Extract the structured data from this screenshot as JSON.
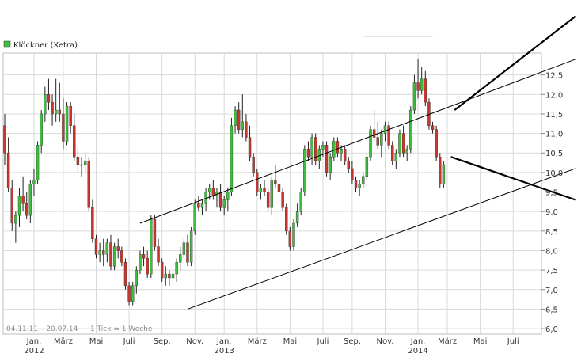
{
  "legend": {
    "label": "Klöckner (Xetra)",
    "color": "#3cbf3c"
  },
  "footer": {
    "range": "04.11.11 – 20.07.14",
    "tick": "1 Tick = 1 Woche"
  },
  "colors": {
    "up": "#3cbf3c",
    "down": "#c8372f",
    "wick": "#222222",
    "grid": "#d9d9d9",
    "trend": "#000000"
  },
  "chart_data": {
    "type": "candlestick",
    "title": "Klöckner (Xetra)",
    "xlabel": "",
    "ylabel": "",
    "ylim": [
      5.9,
      13.0
    ],
    "grid": true,
    "legend_position": "top-left",
    "y_ticks": [
      "6,0",
      "6,5",
      "7,0",
      "7,5",
      "8,0",
      "8,5",
      "9,0",
      "9,5",
      "10,0",
      "10,5",
      "11,0",
      "11,5",
      "12,0",
      "12,5"
    ],
    "y_tick_values": [
      6.0,
      6.5,
      7.0,
      7.5,
      8.0,
      8.5,
      9.0,
      9.5,
      10.0,
      10.5,
      11.0,
      11.5,
      12.0,
      12.5
    ],
    "x_ticks": [
      {
        "label": "Jan.",
        "week": 8,
        "year": "2012"
      },
      {
        "label": "März",
        "week": 16
      },
      {
        "label": "Mai",
        "week": 25
      },
      {
        "label": "Juli",
        "week": 34
      },
      {
        "label": "Sep.",
        "week": 43
      },
      {
        "label": "Nov.",
        "week": 52
      },
      {
        "label": "Jan.",
        "week": 60,
        "year": "2013"
      },
      {
        "label": "März",
        "week": 69
      },
      {
        "label": "Mai",
        "week": 78
      },
      {
        "label": "Juli",
        "week": 87
      },
      {
        "label": "Sep.",
        "week": 95
      },
      {
        "label": "Nov.",
        "week": 104
      },
      {
        "label": "Jan.",
        "week": 113,
        "year": "2014"
      },
      {
        "label": "März",
        "week": 121
      },
      {
        "label": "Mai",
        "week": 130
      },
      {
        "label": "Juli",
        "week": 139
      }
    ],
    "candles": [
      [
        11.2,
        11.5,
        10.2,
        10.5
      ],
      [
        10.5,
        10.9,
        9.5,
        9.6
      ],
      [
        9.6,
        9.8,
        8.5,
        8.7
      ],
      [
        8.7,
        9.0,
        8.2,
        8.9
      ],
      [
        8.9,
        9.6,
        8.6,
        9.4
      ],
      [
        9.4,
        9.9,
        9.0,
        9.2
      ],
      [
        9.2,
        9.5,
        8.8,
        8.9
      ],
      [
        8.9,
        9.8,
        8.7,
        9.7
      ],
      [
        9.7,
        10.1,
        9.4,
        9.8
      ],
      [
        9.8,
        10.8,
        9.7,
        10.7
      ],
      [
        10.7,
        11.6,
        10.5,
        11.5
      ],
      [
        11.5,
        12.2,
        11.3,
        12.0
      ],
      [
        12.0,
        12.4,
        11.6,
        11.8
      ],
      [
        11.8,
        12.0,
        11.2,
        11.5
      ],
      [
        11.5,
        12.4,
        11.3,
        11.6
      ],
      [
        11.6,
        12.3,
        11.3,
        11.5
      ],
      [
        11.5,
        11.9,
        10.6,
        10.8
      ],
      [
        10.8,
        11.8,
        10.7,
        11.7
      ],
      [
        11.7,
        11.8,
        11.0,
        11.2
      ],
      [
        11.2,
        11.5,
        10.3,
        10.4
      ],
      [
        10.4,
        10.6,
        10.0,
        10.2
      ],
      [
        10.2,
        10.4,
        9.9,
        10.2
      ],
      [
        10.2,
        10.5,
        10.0,
        10.3
      ],
      [
        10.3,
        10.4,
        9.0,
        9.1
      ],
      [
        9.1,
        9.3,
        8.2,
        8.3
      ],
      [
        8.3,
        8.4,
        7.8,
        7.9
      ],
      [
        7.9,
        8.2,
        7.7,
        8.0
      ],
      [
        8.0,
        8.3,
        7.6,
        7.9
      ],
      [
        7.9,
        8.3,
        7.7,
        8.2
      ],
      [
        8.2,
        8.4,
        7.5,
        7.6
      ],
      [
        7.6,
        8.2,
        7.5,
        8.1
      ],
      [
        8.1,
        8.3,
        7.8,
        8.0
      ],
      [
        8.0,
        8.1,
        7.6,
        7.7
      ],
      [
        7.7,
        7.8,
        7.0,
        7.1
      ],
      [
        7.1,
        7.2,
        6.6,
        6.7
      ],
      [
        6.7,
        7.2,
        6.6,
        7.1
      ],
      [
        7.1,
        7.6,
        6.9,
        7.5
      ],
      [
        7.5,
        8.0,
        7.4,
        7.9
      ],
      [
        7.9,
        8.1,
        7.6,
        7.8
      ],
      [
        7.8,
        8.0,
        7.3,
        7.4
      ],
      [
        7.4,
        8.9,
        7.3,
        8.8
      ],
      [
        8.8,
        8.9,
        8.0,
        8.1
      ],
      [
        8.1,
        8.3,
        7.6,
        7.7
      ],
      [
        7.7,
        7.8,
        7.2,
        7.3
      ],
      [
        7.3,
        7.6,
        7.1,
        7.4
      ],
      [
        7.4,
        7.5,
        7.1,
        7.3
      ],
      [
        7.3,
        7.5,
        7.0,
        7.4
      ],
      [
        7.4,
        7.8,
        7.2,
        7.7
      ],
      [
        7.7,
        8.1,
        7.5,
        7.9
      ],
      [
        7.9,
        8.3,
        7.8,
        8.2
      ],
      [
        8.2,
        8.4,
        7.6,
        7.7
      ],
      [
        7.7,
        8.6,
        7.6,
        8.5
      ],
      [
        8.5,
        9.3,
        8.4,
        9.2
      ],
      [
        9.2,
        9.4,
        9.0,
        9.1
      ],
      [
        9.1,
        9.3,
        8.9,
        9.2
      ],
      [
        9.2,
        9.6,
        9.0,
        9.5
      ],
      [
        9.5,
        9.7,
        9.3,
        9.6
      ],
      [
        9.6,
        9.8,
        9.3,
        9.4
      ],
      [
        9.4,
        9.6,
        9.1,
        9.5
      ],
      [
        9.5,
        9.7,
        9.0,
        9.1
      ],
      [
        9.1,
        9.4,
        8.9,
        9.3
      ],
      [
        9.3,
        9.6,
        9.0,
        9.5
      ],
      [
        9.5,
        11.4,
        9.4,
        11.2
      ],
      [
        11.2,
        11.7,
        11.0,
        11.6
      ],
      [
        11.6,
        11.8,
        11.0,
        11.1
      ],
      [
        11.1,
        12.0,
        10.9,
        11.3
      ],
      [
        11.3,
        11.5,
        10.8,
        10.9
      ],
      [
        10.9,
        11.2,
        10.3,
        10.4
      ],
      [
        10.4,
        10.5,
        9.9,
        10.0
      ],
      [
        10.0,
        10.1,
        9.4,
        9.5
      ],
      [
        9.5,
        9.7,
        9.3,
        9.6
      ],
      [
        9.6,
        9.8,
        9.4,
        9.5
      ],
      [
        9.5,
        9.6,
        9.0,
        9.1
      ],
      [
        9.1,
        9.9,
        8.9,
        9.8
      ],
      [
        9.8,
        10.2,
        9.6,
        9.7
      ],
      [
        9.7,
        9.8,
        9.4,
        9.5
      ],
      [
        9.5,
        9.6,
        9.0,
        9.1
      ],
      [
        9.1,
        9.2,
        8.4,
        8.5
      ],
      [
        8.5,
        8.6,
        8.0,
        8.1
      ],
      [
        8.1,
        8.8,
        8.0,
        8.7
      ],
      [
        8.7,
        9.2,
        8.6,
        9.0
      ],
      [
        9.0,
        9.6,
        8.9,
        9.5
      ],
      [
        9.5,
        10.7,
        9.4,
        10.6
      ],
      [
        10.6,
        10.8,
        10.3,
        10.4
      ],
      [
        10.4,
        11.0,
        10.2,
        10.9
      ],
      [
        10.9,
        11.0,
        10.2,
        10.3
      ],
      [
        10.3,
        10.7,
        10.1,
        10.6
      ],
      [
        10.6,
        10.8,
        10.4,
        10.7
      ],
      [
        10.7,
        10.8,
        9.9,
        10.0
      ],
      [
        10.0,
        10.5,
        9.8,
        10.4
      ],
      [
        10.4,
        10.9,
        10.3,
        10.8
      ],
      [
        10.8,
        10.9,
        10.4,
        10.5
      ],
      [
        10.5,
        10.7,
        10.3,
        10.6
      ],
      [
        10.6,
        10.7,
        10.2,
        10.3
      ],
      [
        10.3,
        10.4,
        10.0,
        10.1
      ],
      [
        10.1,
        10.3,
        9.7,
        9.8
      ],
      [
        9.8,
        9.9,
        9.5,
        9.6
      ],
      [
        9.6,
        9.8,
        9.4,
        9.7
      ],
      [
        9.7,
        10.0,
        9.6,
        9.9
      ],
      [
        9.9,
        10.5,
        9.8,
        10.4
      ],
      [
        10.4,
        11.2,
        10.3,
        11.1
      ],
      [
        11.1,
        11.6,
        10.8,
        10.9
      ],
      [
        10.9,
        11.3,
        10.6,
        10.7
      ],
      [
        10.7,
        11.1,
        10.4,
        11.0
      ],
      [
        11.0,
        11.3,
        10.8,
        11.2
      ],
      [
        11.2,
        11.3,
        10.6,
        10.7
      ],
      [
        10.7,
        10.8,
        10.2,
        10.3
      ],
      [
        10.3,
        10.6,
        10.1,
        10.5
      ],
      [
        10.5,
        11.1,
        10.4,
        11.0
      ],
      [
        11.0,
        11.2,
        10.4,
        10.5
      ],
      [
        10.5,
        10.7,
        10.3,
        10.6
      ],
      [
        10.6,
        11.7,
        10.5,
        11.6
      ],
      [
        11.6,
        12.5,
        11.5,
        12.3
      ],
      [
        12.3,
        12.9,
        11.9,
        12.1
      ],
      [
        12.1,
        12.7,
        12.0,
        12.4
      ],
      [
        12.4,
        12.6,
        11.7,
        11.8
      ],
      [
        11.8,
        11.9,
        11.1,
        11.2
      ],
      [
        11.2,
        11.3,
        11.0,
        11.1
      ],
      [
        11.1,
        11.2,
        10.3,
        10.4
      ],
      [
        10.4,
        10.5,
        9.6,
        9.7
      ],
      [
        9.7,
        10.3,
        9.6,
        10.2
      ]
    ],
    "trendlines": [
      {
        "name": "channel-upper",
        "from": {
          "week": 37,
          "value": 8.7
        },
        "to": {
          "week": 156,
          "value": 12.9
        }
      },
      {
        "name": "channel-lower",
        "from": {
          "week": 50,
          "value": 6.5
        },
        "to": {
          "week": 156,
          "value": 10.1
        }
      },
      {
        "name": "wedge-upper",
        "from": {
          "week": 123,
          "value": 11.6
        },
        "to": {
          "week": 156,
          "value": 14.0
        }
      },
      {
        "name": "wedge-lower",
        "from": {
          "week": 122,
          "value": 10.4
        },
        "to": {
          "week": 156,
          "value": 9.3
        }
      }
    ]
  }
}
